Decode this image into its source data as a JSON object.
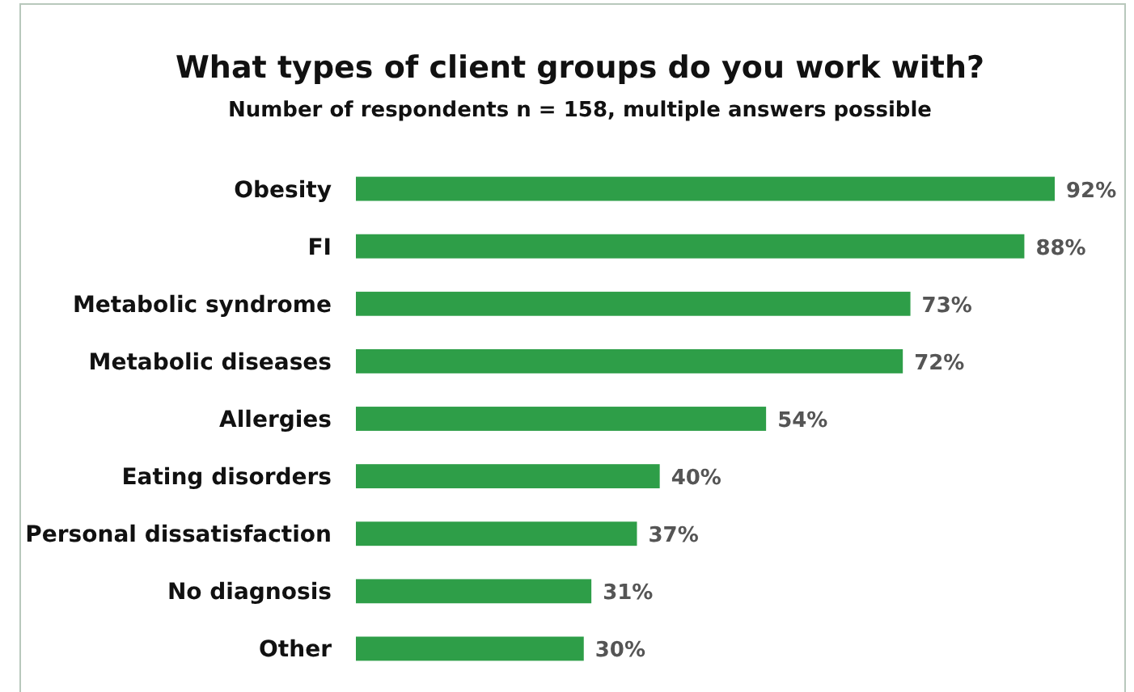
{
  "chart_data": {
    "type": "bar",
    "orientation": "horizontal",
    "title": "What types of client groups do you work with?",
    "subtitle": "Number of respondents n = 158, multiple answers possible",
    "categories": [
      "Obesity",
      "FI",
      "Metabolic syndrome",
      "Metabolic diseases",
      "Allergies",
      "Eating disorders",
      "Personal dissatisfaction",
      "No diagnosis",
      "Other"
    ],
    "values": [
      92,
      88,
      73,
      72,
      54,
      40,
      37,
      31,
      30
    ],
    "value_labels": [
      "92%",
      "88%",
      "73%",
      "72%",
      "54%",
      "40%",
      "37%",
      "31%",
      "30%"
    ],
    "color": "#2e9e48"
  }
}
